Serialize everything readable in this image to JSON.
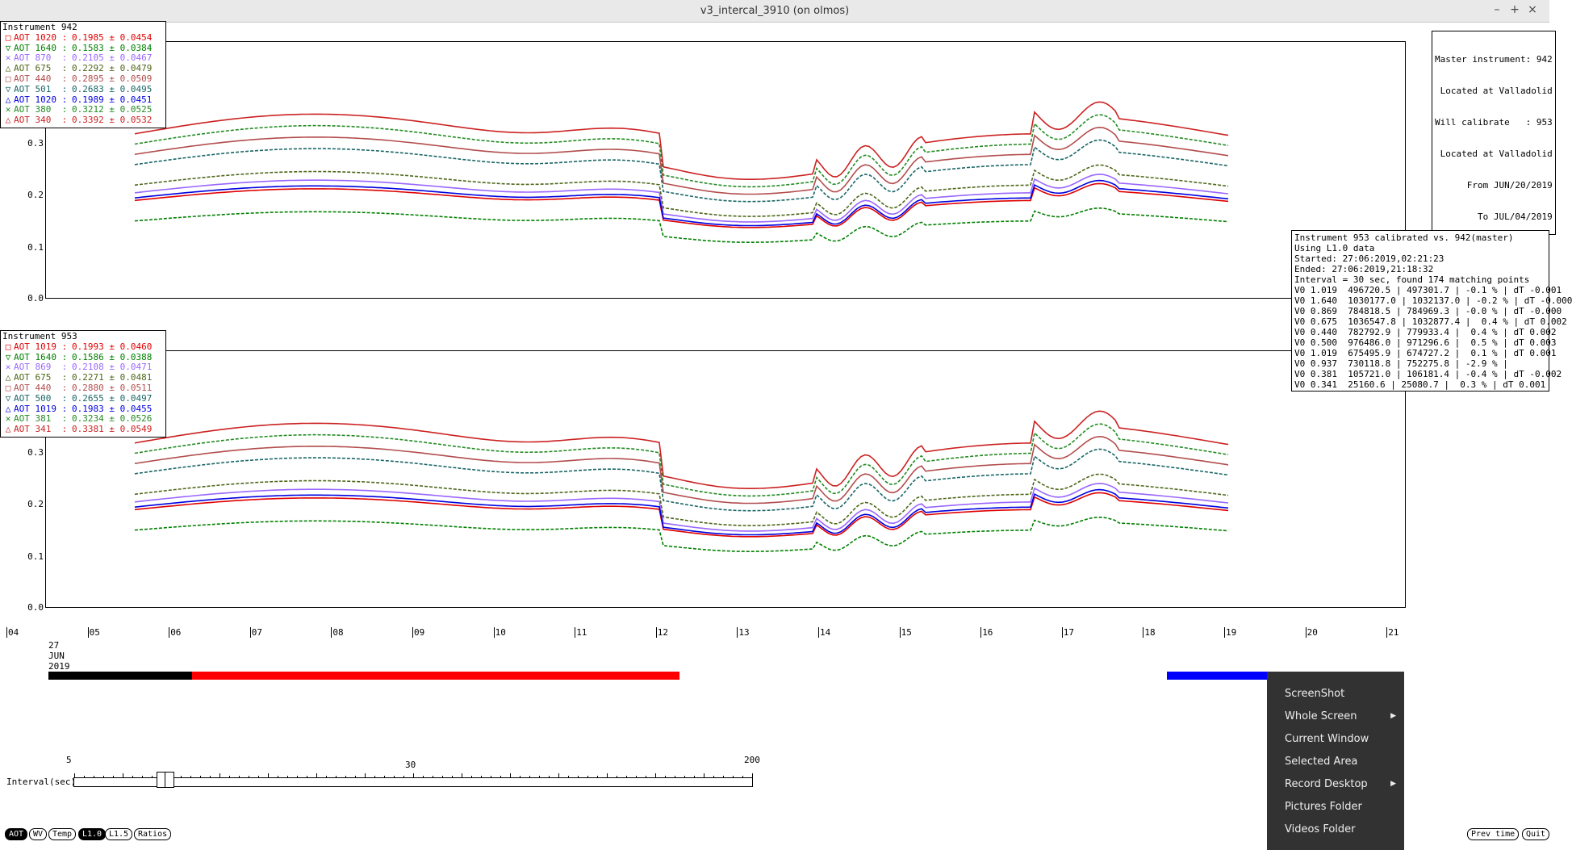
{
  "window": {
    "title": "v3_intercal_3910 (on olmos)",
    "controls": [
      "–",
      "+",
      "×"
    ]
  },
  "plot1": {
    "yticks": [
      "0.3",
      "0.2",
      "0.1",
      "0.0"
    ],
    "legend": {
      "title": "Instrument 942",
      "rows": [
        {
          "label": "AOT 1020 :",
          "value": "0.1985 ± 0.0454",
          "color": "#e00000",
          "sym": "□"
        },
        {
          "label": "AOT 1640 :",
          "value": "0.1583 ± 0.0384",
          "color": "#008000",
          "sym": "▽"
        },
        {
          "label": "AOT 870  :",
          "value": "0.2105 ± 0.0467",
          "color": "#9966ff",
          "sym": "✕"
        },
        {
          "label": "AOT 675  :",
          "value": "0.2292 ± 0.0479",
          "color": "#4d6619",
          "sym": "△"
        },
        {
          "label": "AOT 440  :",
          "value": "0.2895 ± 0.0509",
          "color": "#b34d4d",
          "sym": "□"
        },
        {
          "label": "AOT 501  :",
          "value": "0.2683 ± 0.0495",
          "color": "#1a6666",
          "sym": "▽"
        },
        {
          "label": "AOT 1020 :",
          "value": "0.1989 ± 0.0451",
          "color": "#0000e0",
          "sym": "△"
        },
        {
          "label": "AOT 380  :",
          "value": "0.3212 ± 0.0525",
          "color": "#228b22",
          "sym": "✕"
        },
        {
          "label": "AOT 340  :",
          "value": "0.3392 ± 0.0532",
          "color": "#cc2222",
          "sym": "△"
        }
      ]
    },
    "master": [
      "Master instrument: 942",
      "Located at Valladolid",
      "Will calibrate   : 953",
      "Located at Valladolid",
      "From JUN/20/2019",
      "To JUL/04/2019"
    ]
  },
  "plot2": {
    "yticks": [
      "0.3",
      "0.2",
      "0.1",
      "0.0"
    ],
    "legend": {
      "title": "Instrument 953",
      "rows": [
        {
          "label": "AOT 1019 :",
          "value": "0.1993 ± 0.0460",
          "color": "#e00000",
          "sym": "□"
        },
        {
          "label": "AOT 1640 :",
          "value": "0.1586 ± 0.0388",
          "color": "#008000",
          "sym": "▽"
        },
        {
          "label": "AOT 869  :",
          "value": "0.2108 ± 0.0471",
          "color": "#9966ff",
          "sym": "✕"
        },
        {
          "label": "AOT 675  :",
          "value": "0.2271 ± 0.0481",
          "color": "#4d6619",
          "sym": "△"
        },
        {
          "label": "AOT 440  :",
          "value": "0.2880 ± 0.0511",
          "color": "#b34d4d",
          "sym": "□"
        },
        {
          "label": "AOT 500  :",
          "value": "0.2655 ± 0.0497",
          "color": "#1a6666",
          "sym": "▽"
        },
        {
          "label": "AOT 1019 :",
          "value": "0.1983 ± 0.0455",
          "color": "#0000e0",
          "sym": "△"
        },
        {
          "label": "AOT 381  :",
          "value": "0.3234 ± 0.0526",
          "color": "#228b22",
          "sym": "✕"
        },
        {
          "label": "AOT 341  :",
          "value": "0.3381 ± 0.0549",
          "color": "#cc2222",
          "sym": "△"
        }
      ]
    }
  },
  "calibration": [
    "Instrument 953 calibrated vs. 942(master)",
    "Using L1.0 data",
    "Started: 27:06:2019,02:21:23",
    "Ended: 27:06:2019,21:18:32",
    "Interval = 30 sec, found 174 matching points",
    "V0 1.019  496720.5 | 497301.7 | -0.1 % | dT -0.001",
    "V0 1.640  1030177.0 | 1032137.0 | -0.2 % | dT -0.000",
    "V0 0.869  784818.5 | 784969.3 | -0.0 % | dT -0.000",
    "V0 0.675  1036547.8 | 1032877.4 |  0.4 % | dT 0.002",
    "V0 0.440  782792.9 | 779933.4 |  0.4 % | dT 0.002",
    "V0 0.500  976486.0 | 971296.6 |  0.5 % | dT 0.003",
    "V0 1.019  675495.9 | 674727.2 |  0.1 % | dT 0.001",
    "V0 0.937  730118.8 | 752275.8 | -2.9 % |",
    "V0 0.381  105721.0 | 106181.4 | -0.4 % | dT -0.002",
    "V0 0.341  25160.6 | 25080.7 |  0.3 % | dT 0.001"
  ],
  "xaxis": {
    "ticks": [
      "04",
      "05",
      "06",
      "07",
      "08",
      "09",
      "10",
      "11",
      "12",
      "13",
      "14",
      "15",
      "16",
      "17",
      "18",
      "19",
      "20",
      "21"
    ]
  },
  "date": {
    "day": "27",
    "month": "JUN",
    "year": "2019"
  },
  "interval": {
    "label": "Interval(sec)",
    "min": "5",
    "mid": "30",
    "max": "200",
    "value": 30
  },
  "buttons": {
    "aot": "AOT",
    "wv": "WV",
    "temp": "Temp",
    "l10": "L1.0",
    "l15": "L1.5",
    "ratios": "Ratios",
    "prev_time": "Prev time",
    "quit": "Quit"
  },
  "context_menu": {
    "items": [
      "ScreenShot",
      "Whole Screen",
      "Current Window",
      "Selected Area",
      "Record Desktop",
      "Pictures Folder",
      "Videos Folder"
    ]
  },
  "colors": {
    "band_black": "#000000",
    "band_red": "#ff0000",
    "band_blue": "#0000ff",
    "menu_bg": "#323232"
  }
}
